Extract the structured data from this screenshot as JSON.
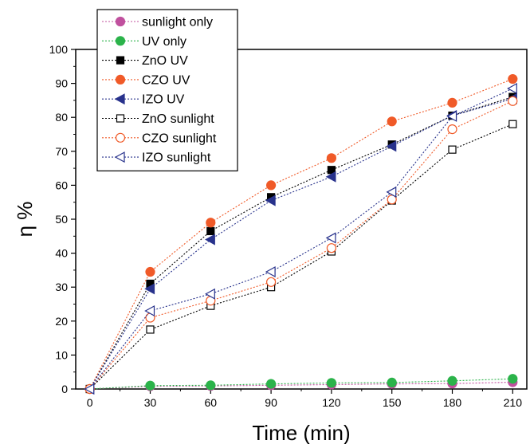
{
  "chart_data": {
    "type": "line",
    "title": "",
    "xlabel": "Time (min)",
    "ylabel": "η %",
    "xlim": [
      -7,
      217
    ],
    "ylim": [
      0,
      100
    ],
    "xticks": [
      0,
      30,
      60,
      90,
      120,
      150,
      180,
      210
    ],
    "yticks": [
      0,
      10,
      20,
      30,
      40,
      50,
      60,
      70,
      80,
      90,
      100
    ],
    "grid": false,
    "legend_position": "top-left",
    "x": [
      0,
      30,
      60,
      90,
      120,
      150,
      180,
      210
    ],
    "series": [
      {
        "name": "sunlight only",
        "color": "#c0509e",
        "marker": "circle-filled",
        "values": [
          0,
          0.8,
          0.9,
          1.1,
          1.3,
          1.5,
          1.6,
          2.0
        ]
      },
      {
        "name": "UV only",
        "color": "#2bb34a",
        "marker": "circle-filled",
        "values": [
          0,
          1.0,
          1.1,
          1.5,
          1.8,
          1.9,
          2.4,
          3.0
        ]
      },
      {
        "name": "ZnO UV",
        "color": "#000000",
        "marker": "square-filled",
        "values": [
          0,
          31.0,
          46.5,
          56.5,
          64.5,
          72.0,
          80.5,
          86.0
        ]
      },
      {
        "name": "CZO UV",
        "color": "#f05a28",
        "marker": "circle-filled",
        "values": [
          0,
          34.5,
          49.0,
          60.0,
          68.0,
          78.8,
          84.3,
          91.3
        ]
      },
      {
        "name": "IZO UV",
        "color": "#28328c",
        "marker": "triangle-left-filled",
        "values": [
          0,
          29.5,
          44.0,
          55.5,
          62.5,
          71.5,
          80.5,
          85.5
        ]
      },
      {
        "name": "ZnO sunlight",
        "color": "#000000",
        "marker": "square-open",
        "values": [
          0,
          17.5,
          24.5,
          30.0,
          40.5,
          55.5,
          70.5,
          78.0
        ]
      },
      {
        "name": "CZO sunlight",
        "color": "#f05a28",
        "marker": "circle-open",
        "values": [
          0,
          21.0,
          26.0,
          31.5,
          41.5,
          55.8,
          76.5,
          84.8
        ]
      },
      {
        "name": "IZO sunlight",
        "color": "#28328c",
        "marker": "triangle-left-open",
        "values": [
          0,
          23.0,
          28.0,
          34.5,
          44.5,
          58.0,
          80.3,
          88.5
        ]
      }
    ]
  }
}
